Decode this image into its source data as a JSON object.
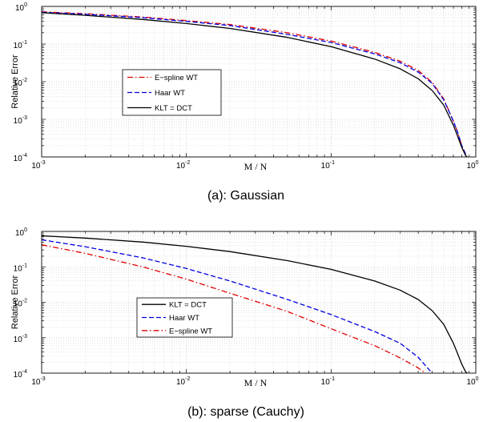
{
  "chart_data": [
    {
      "type": "line",
      "caption": "(a): Gaussian",
      "xlabel": "M / N",
      "ylabel": "Relative Error",
      "xscale": "log",
      "yscale": "log",
      "xlim": [
        0.001,
        1
      ],
      "ylim": [
        0.0001,
        1
      ],
      "xticks": [
        {
          "base": "10",
          "exp": "-3"
        },
        {
          "base": "10",
          "exp": "-2"
        },
        {
          "base": "10",
          "exp": "-1"
        },
        {
          "base": "10",
          "exp": "0"
        }
      ],
      "yticks": [
        {
          "base": "10",
          "exp": "-4"
        },
        {
          "base": "10",
          "exp": "-3"
        },
        {
          "base": "10",
          "exp": "-2"
        },
        {
          "base": "10",
          "exp": "-1"
        },
        {
          "base": "10",
          "exp": "0"
        }
      ],
      "grid": true,
      "legend_position": "center-left",
      "series": [
        {
          "name": "E−spline WT",
          "color": "#e00000",
          "dash": "dashdot",
          "x": [
            0.001,
            0.002,
            0.005,
            0.01,
            0.02,
            0.05,
            0.1,
            0.2,
            0.3,
            0.4,
            0.5,
            0.6,
            0.7,
            0.75,
            0.8,
            0.85,
            0.87
          ],
          "y": [
            0.72,
            0.64,
            0.52,
            0.42,
            0.33,
            0.2,
            0.12,
            0.06,
            0.035,
            0.02,
            0.0095,
            0.0035,
            0.0009,
            0.00045,
            0.0002,
            0.00012,
            0.0001
          ]
        },
        {
          "name": "Haar WT",
          "color": "#0000e0",
          "dash": "dashed",
          "x": [
            0.001,
            0.002,
            0.005,
            0.01,
            0.02,
            0.05,
            0.1,
            0.2,
            0.3,
            0.4,
            0.5,
            0.6,
            0.7,
            0.75,
            0.8,
            0.85,
            0.87
          ],
          "y": [
            0.7,
            0.62,
            0.5,
            0.4,
            0.31,
            0.18,
            0.11,
            0.055,
            0.032,
            0.018,
            0.009,
            0.0033,
            0.0009,
            0.00045,
            0.0002,
            0.00012,
            0.0001
          ]
        },
        {
          "name": "KLT = DCT",
          "color": "#000000",
          "dash": "solid",
          "x": [
            0.001,
            0.002,
            0.005,
            0.01,
            0.02,
            0.05,
            0.1,
            0.2,
            0.3,
            0.4,
            0.5,
            0.6,
            0.7,
            0.75,
            0.8,
            0.85,
            0.87
          ],
          "y": [
            0.68,
            0.58,
            0.45,
            0.35,
            0.26,
            0.15,
            0.085,
            0.04,
            0.022,
            0.012,
            0.0058,
            0.0024,
            0.0007,
            0.00035,
            0.00018,
            0.00011,
            0.0001
          ]
        }
      ]
    },
    {
      "type": "line",
      "caption": "(b): sparse (Cauchy)",
      "xlabel": "M / N",
      "ylabel": "Relative Error",
      "xscale": "log",
      "yscale": "log",
      "xlim": [
        0.001,
        1
      ],
      "ylim": [
        0.0001,
        1
      ],
      "xticks": [
        {
          "base": "10",
          "exp": "-3"
        },
        {
          "base": "10",
          "exp": "-2"
        },
        {
          "base": "10",
          "exp": "-1"
        },
        {
          "base": "10",
          "exp": "0"
        }
      ],
      "yticks": [
        {
          "base": "10",
          "exp": "-4"
        },
        {
          "base": "10",
          "exp": "-3"
        },
        {
          "base": "10",
          "exp": "-2"
        },
        {
          "base": "10",
          "exp": "-1"
        },
        {
          "base": "10",
          "exp": "0"
        }
      ],
      "grid": true,
      "legend_position": "center-left",
      "series": [
        {
          "name": "KLT = DCT",
          "color": "#000000",
          "dash": "solid",
          "x": [
            0.001,
            0.002,
            0.005,
            0.01,
            0.02,
            0.05,
            0.1,
            0.2,
            0.3,
            0.4,
            0.5,
            0.6,
            0.7,
            0.75,
            0.8,
            0.85,
            0.87
          ],
          "y": [
            0.75,
            0.65,
            0.5,
            0.38,
            0.27,
            0.15,
            0.085,
            0.04,
            0.022,
            0.012,
            0.0058,
            0.0024,
            0.0007,
            0.00035,
            0.00018,
            0.00011,
            0.0001
          ]
        },
        {
          "name": "Haar WT",
          "color": "#0000e0",
          "dash": "dashed",
          "x": [
            0.001,
            0.002,
            0.005,
            0.01,
            0.02,
            0.05,
            0.1,
            0.2,
            0.3,
            0.4,
            0.5
          ],
          "y": [
            0.58,
            0.37,
            0.18,
            0.09,
            0.04,
            0.012,
            0.0045,
            0.0015,
            0.0007,
            0.00028,
            0.0001
          ]
        },
        {
          "name": "E−spline WT",
          "color": "#e00000",
          "dash": "dashdot",
          "x": [
            0.001,
            0.002,
            0.005,
            0.01,
            0.02,
            0.05,
            0.1,
            0.2,
            0.3,
            0.4,
            0.45
          ],
          "y": [
            0.42,
            0.24,
            0.1,
            0.045,
            0.018,
            0.0055,
            0.0018,
            0.0006,
            0.00027,
            0.00014,
            0.0001
          ]
        }
      ]
    }
  ]
}
